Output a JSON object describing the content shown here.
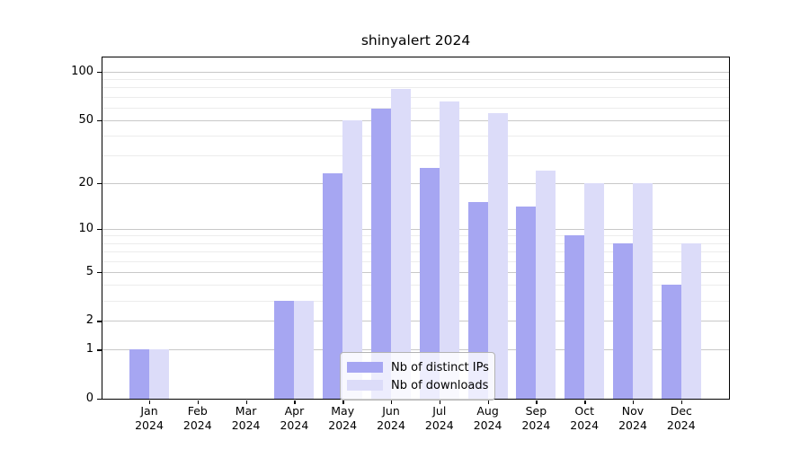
{
  "title": "shinyalert 2024",
  "colors": {
    "ips_bar": "#a6a6f2",
    "downloads_bar": "#dcdcf9",
    "grid_major": "#c8c8c8",
    "grid_minor": "#ececec",
    "axis": "#000000"
  },
  "legend": {
    "position": "lower center",
    "items": [
      {
        "label": "Nb of distinct IPs",
        "color_key": "ips_bar"
      },
      {
        "label": "Nb of downloads",
        "color_key": "downloads_bar"
      }
    ]
  },
  "chart_data": {
    "type": "bar",
    "title": "shinyalert 2024",
    "categories": [
      "Jan 2024",
      "Feb 2024",
      "Mar 2024",
      "Apr 2024",
      "May 2024",
      "Jun 2024",
      "Jul 2024",
      "Aug 2024",
      "Sep 2024",
      "Oct 2024",
      "Nov 2024",
      "Dec 2024"
    ],
    "month_labels": [
      "Jan",
      "Feb",
      "Mar",
      "Apr",
      "May",
      "Jun",
      "Jul",
      "Aug",
      "Sep",
      "Oct",
      "Nov",
      "Dec"
    ],
    "year_label": "2024",
    "series": [
      {
        "name": "Nb of distinct IPs",
        "values": [
          1,
          0,
          0,
          3,
          23,
          59,
          25,
          15,
          14,
          9,
          8,
          4
        ]
      },
      {
        "name": "Nb of downloads",
        "values": [
          1,
          0,
          0,
          3,
          50,
          78,
          65,
          55,
          24,
          20,
          20,
          8
        ]
      }
    ],
    "xlabel": "",
    "ylabel": "",
    "y_scale": "log1p",
    "ylim": [
      0,
      123
    ],
    "y_ticks": [
      0,
      1,
      2,
      5,
      10,
      20,
      50,
      100
    ],
    "y_minor_gridlines": [
      3,
      4,
      6,
      7,
      8,
      9,
      30,
      40,
      60,
      70,
      80,
      90
    ],
    "grid": "horizontal"
  }
}
